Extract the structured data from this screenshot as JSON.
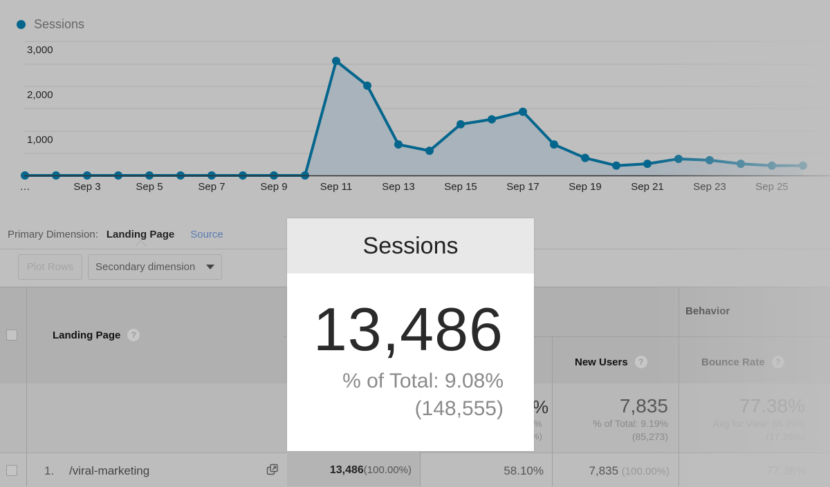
{
  "chart": {
    "legend": "Sessions",
    "series_color": "#05668d",
    "y_ticks": [
      "3,000",
      "2,000",
      "1,000"
    ],
    "x_ticks": [
      "…",
      "Sep 3",
      "Sep 5",
      "Sep 7",
      "Sep 9",
      "Sep 11",
      "Sep 13",
      "Sep 15",
      "Sep 17",
      "Sep 19",
      "Sep 21",
      "Sep 23",
      "Sep 25"
    ]
  },
  "chart_data": {
    "type": "area",
    "title": "",
    "legend": [
      "Sessions"
    ],
    "x": [
      "Sep 1",
      "Sep 2",
      "Sep 3",
      "Sep 4",
      "Sep 5",
      "Sep 6",
      "Sep 7",
      "Sep 8",
      "Sep 9",
      "Sep 10",
      "Sep 11",
      "Sep 12",
      "Sep 13",
      "Sep 14",
      "Sep 15",
      "Sep 16",
      "Sep 17",
      "Sep 18",
      "Sep 19",
      "Sep 20",
      "Sep 21",
      "Sep 22",
      "Sep 23",
      "Sep 24",
      "Sep 25",
      "Sep 26"
    ],
    "series": [
      {
        "name": "Sessions",
        "values": [
          0,
          0,
          0,
          0,
          0,
          0,
          0,
          0,
          0,
          0,
          2550,
          2000,
          690,
          550,
          1140,
          1250,
          1420,
          690,
          390,
          220,
          260,
          370,
          340,
          260,
          220,
          220
        ]
      }
    ],
    "y_ticks": [
      1000,
      2000,
      3000
    ],
    "ylim": [
      0,
      3000
    ],
    "grid": true
  },
  "dimension": {
    "label": "Primary Dimension:",
    "active": "Landing Page",
    "other": "Source"
  },
  "toolbar": {
    "plot_rows": "Plot Rows",
    "secondary_dimension": "Secondary dimension"
  },
  "table": {
    "headers": {
      "landing_page": "Landing Page",
      "behavior": "Behavior",
      "new_users": "New Users",
      "bounce_rate": "Bounce Rate"
    },
    "totals": {
      "partial_pct_main": "%",
      "partial_pct_sub1": "%",
      "partial_pct_sub2": "%)",
      "new_users_value": "7,835",
      "new_users_sub1": "% of Total: 9.19%",
      "new_users_sub2": "(85,273)",
      "bounce_value": "77.38%",
      "bounce_sub1": "Avg for View: 65.99%",
      "bounce_sub2": "(17.26%)"
    },
    "rows": [
      {
        "index": "1.",
        "page": "/viral-marketing",
        "sessions": "13,486",
        "sessions_pct": "(100.00%)",
        "pct_new_sessions": "58.10%",
        "new_users": "7,835",
        "new_users_pct": "(100.00%)",
        "bounce_rate": "77.38%"
      }
    ]
  },
  "popup": {
    "title": "Sessions",
    "value": "13,486",
    "pct_line": "% of Total: 9.08%",
    "total_line": "(148,555)"
  }
}
